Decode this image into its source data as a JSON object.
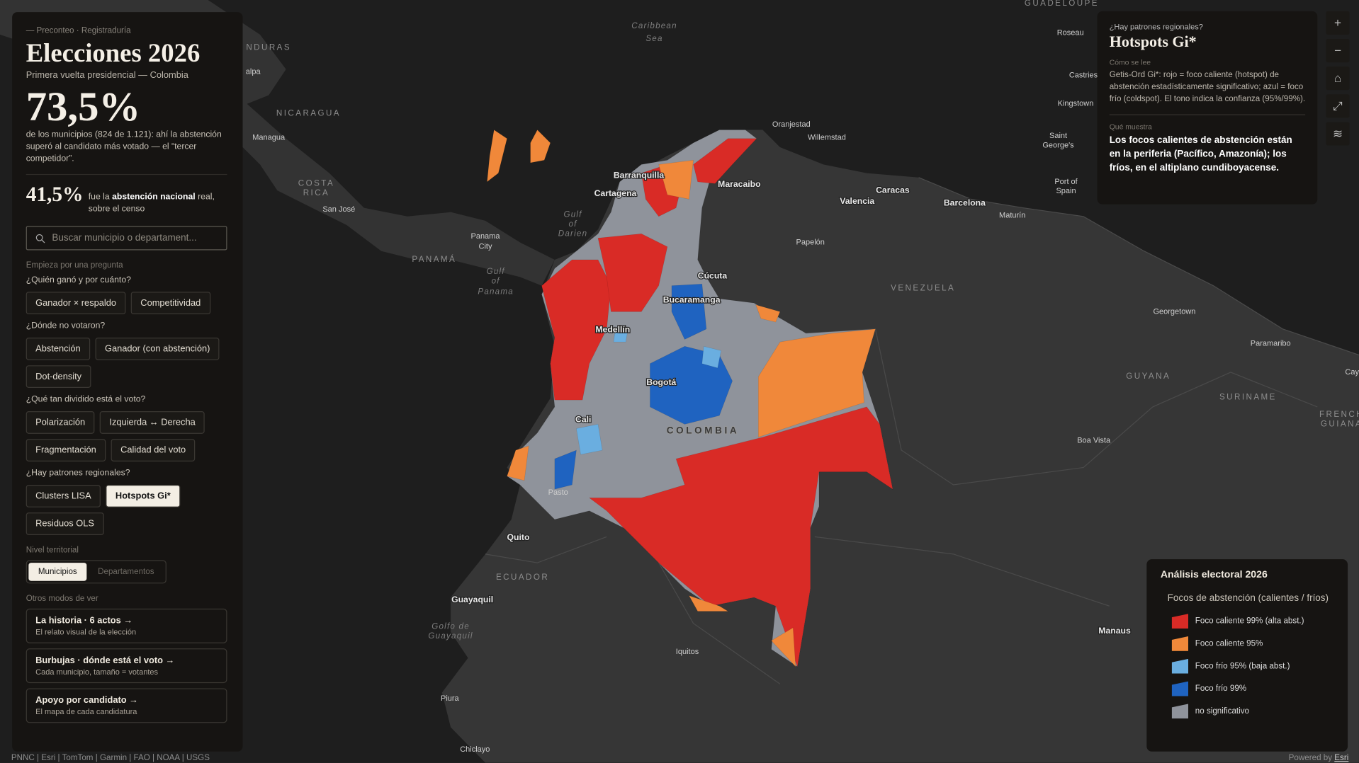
{
  "sidebar": {
    "eyebrow": "Preconteo · Registraduría",
    "title": "Elecciones 2026",
    "subtitle": "Primera vuelta presidencial — Colombia",
    "headline_stat": "73,5%",
    "headline_text": "de los municipios (824 de 1.121): ahí la abstención superó al candidato más votado — el “tercer competidor”.",
    "secondary_stat": "41,5%",
    "secondary_pre": "fue la",
    "secondary_bold": "abstención nacional",
    "secondary_post": "real, sobre el censo",
    "search_placeholder": "Buscar municipio o departament...",
    "questions_label": "Empieza por una pregunta",
    "question_groups": [
      {
        "question": "¿Quién ganó y por cuánto?",
        "buttons": [
          "Ganador × respaldo",
          "Competitividad"
        ]
      },
      {
        "question": "¿Dónde no votaron?",
        "buttons": [
          "Abstención",
          "Ganador (con abstención)",
          "Dot-density"
        ]
      },
      {
        "question": "¿Qué tan dividido está el voto?",
        "buttons": [
          "Polarización",
          "Izquierda ↔ Derecha",
          "Fragmentación",
          "Calidad del voto"
        ]
      },
      {
        "question": "¿Hay patrones regionales?",
        "buttons": [
          "Clusters LISA",
          "Hotspots Gi*",
          "Residuos OLS"
        ]
      }
    ],
    "active_button": "Hotspots Gi*",
    "level_label": "Nivel territorial",
    "levels": [
      "Municipios",
      "Departamentos"
    ],
    "other_label": "Otros modos de ver",
    "modes": [
      {
        "title": "La historia · 6 actos →",
        "subtitle": "El relato visual de la elección"
      },
      {
        "title": "Burbujas · dónde está el voto →",
        "subtitle": "Cada municipio, tamaño = votantes"
      },
      {
        "title": "Apoyo por candidato →",
        "subtitle": "El mapa de cada candidatura"
      }
    ]
  },
  "info_panel": {
    "eyebrow": "¿Hay patrones regionales?",
    "title": "Hotspots Gi*",
    "how_label": "Cómo se lee",
    "how_text": "Getis-Ord Gi*: rojo = foco caliente (hotspot) de abstención estadísticamente significativo; azul = foco frío (coldspot). El tono indica la confianza (95%/99%).",
    "shows_label": "Qué muestra",
    "shows_text": "Los focos calientes de abstención están en la periferia (Pacífico, Amazonía); los fríos, en el altiplano cundiboyacense."
  },
  "legend": {
    "title": "Análisis electoral 2026",
    "subtitle": "Focos de abstención (calientes / fríos)",
    "items": [
      {
        "label": "Foco caliente 99% (alta abst.)",
        "color": "#d92b26"
      },
      {
        "label": "Foco caliente 95%",
        "color": "#f0883a"
      },
      {
        "label": "Foco frío 95% (baja abst.)",
        "color": "#6aaee0"
      },
      {
        "label": "Foco frío 99%",
        "color": "#1f63c0"
      },
      {
        "label": "no significativo",
        "color": "#8f939b"
      }
    ]
  },
  "map_labels": [
    "GUADELOUPE",
    "Caribbean",
    "Sea",
    "NDURAS",
    "alpa",
    "NICARAGUA",
    "Managua",
    "COSTA",
    "RICA",
    "San José",
    "Panama",
    "City",
    "PANAMÁ",
    "Gulf",
    "of",
    "Panama",
    "Gulf",
    "of",
    "Darien",
    "Barranquilla",
    "Cartagena",
    "Maracaibo",
    "Oranjestad",
    "Willemstad",
    "Caracas",
    "Valencia",
    "Barcelona",
    "Maturín",
    "Port of",
    "Spain",
    "Saint",
    "George's",
    "Kingstown",
    "Castries",
    "Roseau",
    "Papelón",
    "Cúcuta",
    "Bucaramanga",
    "VENEZUELA",
    "Georgetown",
    "Paramaribo",
    "GUYANA",
    "SURINAME",
    "FRENCH",
    "GUIANA",
    "Medellín",
    "Bogotá",
    "Cali",
    "COLOMBIA",
    "Pasto",
    "Quito",
    "ECUADOR",
    "Guayaquil",
    "Golfo de",
    "Guayaquil",
    "Iquitos",
    "Manaus",
    "Boa Vista",
    "Piura",
    "Chiclayo",
    "Cay"
  ],
  "attribution": "PNNC | Esri | TomTom | Garmin | FAO | NOAA | USGS",
  "powered_by": "Powered by",
  "powered_link": "Esri"
}
